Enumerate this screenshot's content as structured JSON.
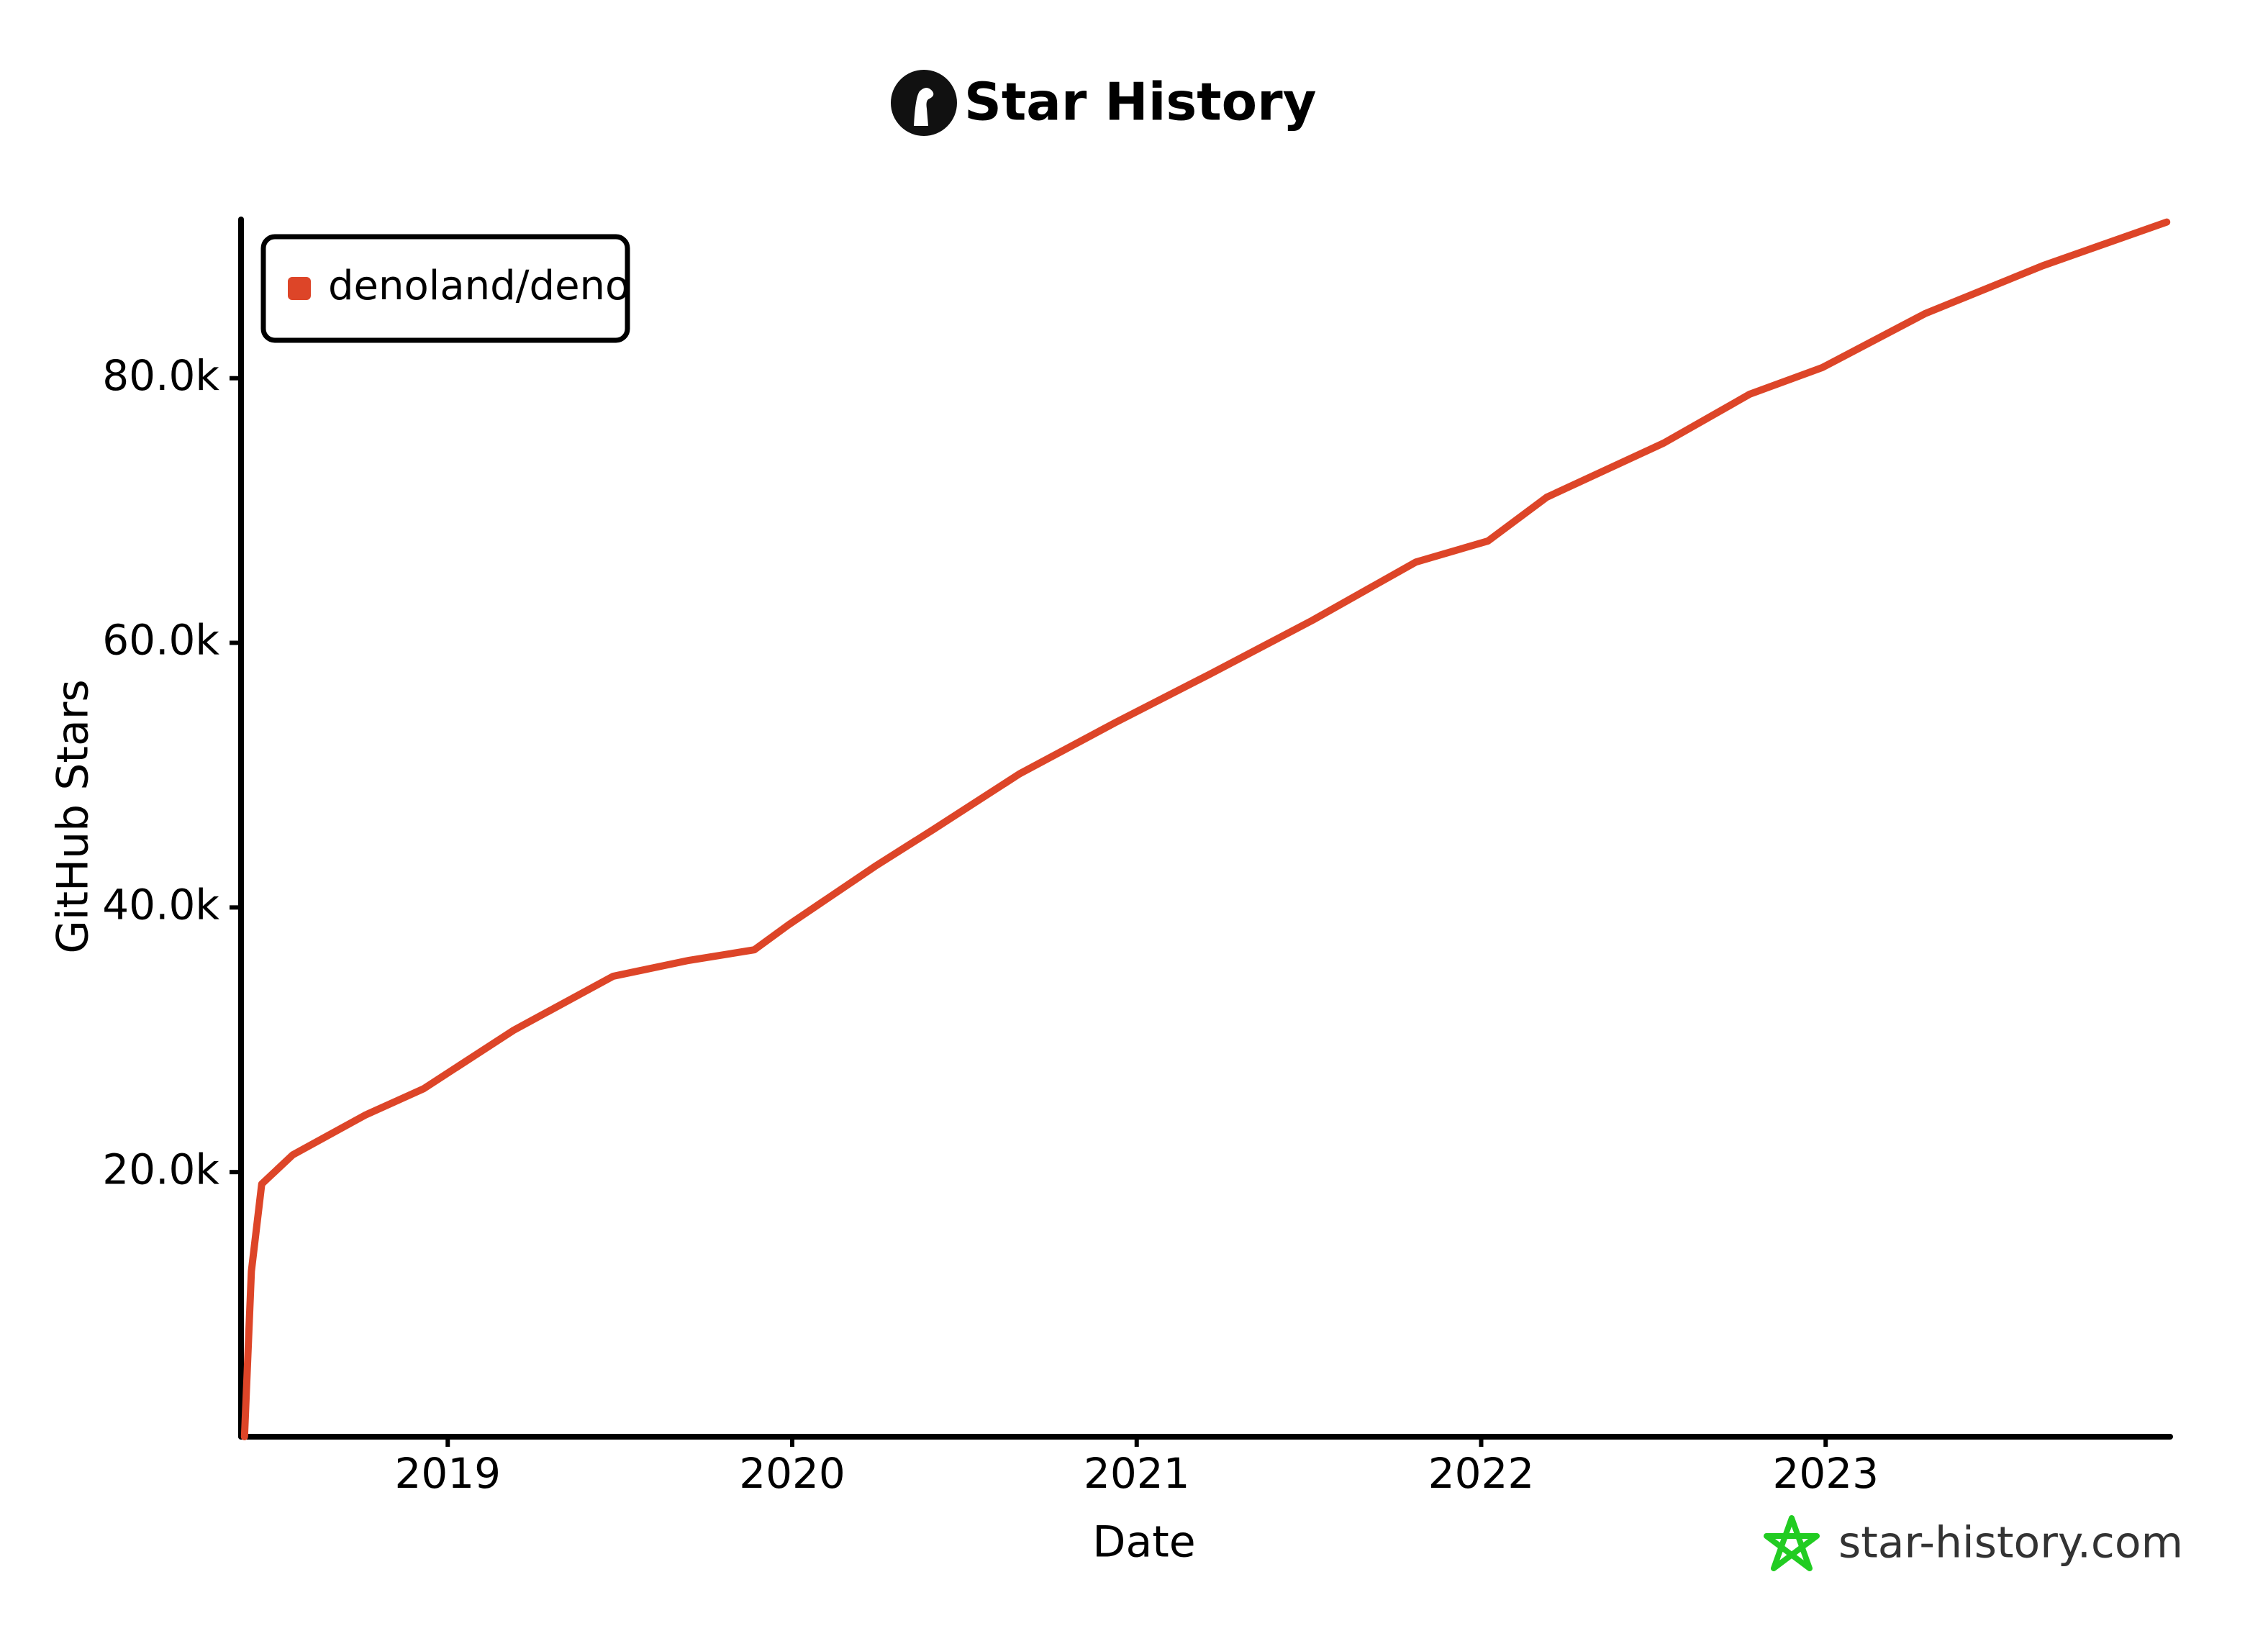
{
  "chart_data": {
    "type": "line",
    "title": "Star History",
    "x_label": "Date",
    "y_label": "GitHub Stars",
    "footer": "star-history.com",
    "legend": "upper left",
    "series": [
      {
        "name": "denoland/deno",
        "color": "#dd4528",
        "x": [
          2018.41,
          2018.43,
          2018.46,
          2018.55,
          2018.76,
          2018.93,
          2019.19,
          2019.48,
          2019.7,
          2019.89,
          2019.99,
          2020.24,
          2020.41,
          2020.66,
          2020.94,
          2021.21,
          2021.51,
          2021.81,
          2022.02,
          2022.19,
          2022.53,
          2022.78,
          2022.99,
          2023.29,
          2023.63,
          2023.99
        ],
        "values": [
          0,
          12500,
          19100,
          21300,
          24300,
          26300,
          30700,
          34800,
          36000,
          36800,
          38700,
          43100,
          45900,
          50100,
          54000,
          57600,
          61700,
          66100,
          67700,
          71000,
          75100,
          78800,
          80800,
          84900,
          88500,
          91800
        ]
      }
    ],
    "xlim": [
      2018.4,
      2024.0
    ],
    "xticks": [
      2019,
      2020,
      2021,
      2022,
      2023
    ],
    "ylim": [
      0,
      92000
    ],
    "yticks": [
      {
        "value": 20000,
        "label": "20.0k"
      },
      {
        "value": 40000,
        "label": "40.0k"
      },
      {
        "value": 60000,
        "label": "60.0k"
      },
      {
        "value": 80000,
        "label": "80.0k"
      }
    ],
    "grid": false
  }
}
